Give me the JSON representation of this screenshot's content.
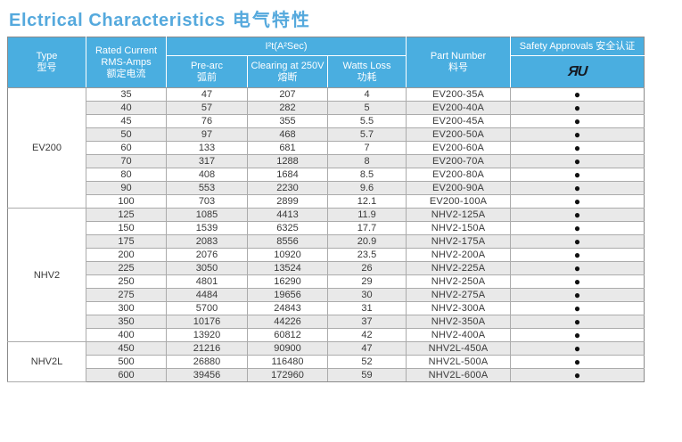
{
  "title": {
    "en": "Elctrical Characteristics",
    "zh": "电气特性"
  },
  "colors": {
    "title_blue": "#55a9dd",
    "header_blue": "#4aaee0",
    "alt_row_gray": "#e9e9e9",
    "grid_gray": "#ababab",
    "approval_dark": "#121212"
  },
  "table": {
    "header": {
      "type": {
        "en": "Type",
        "zh": "型号"
      },
      "rated_current": {
        "line1": "Rated Current",
        "line2": "RMS-Amps",
        "zh": "额定电流"
      },
      "i2t": "I²t(A²Sec)",
      "pre_arc": {
        "en": "Pre-arc",
        "zh": "弧前"
      },
      "clearing": {
        "en": "Clearing at 250V",
        "zh": "熔断"
      },
      "watts_loss": {
        "en": "Watts Loss",
        "zh": "功耗"
      },
      "part_number": {
        "en": "Part Number",
        "zh": "料号"
      },
      "safety_approvals": "Safety Approvals 安全认证",
      "ul_mark_glyph": "ЯU"
    },
    "approval_dot": "●",
    "groups": [
      {
        "type": "EV200",
        "rows": [
          {
            "rated": "35",
            "pre_arc": "47",
            "clearing": "207",
            "watts": "4",
            "part": "EV200-35A"
          },
          {
            "rated": "40",
            "pre_arc": "57",
            "clearing": "282",
            "watts": "5",
            "part": "EV200-40A"
          },
          {
            "rated": "45",
            "pre_arc": "76",
            "clearing": "355",
            "watts": "5.5",
            "part": "EV200-45A"
          },
          {
            "rated": "50",
            "pre_arc": "97",
            "clearing": "468",
            "watts": "5.7",
            "part": "EV200-50A"
          },
          {
            "rated": "60",
            "pre_arc": "133",
            "clearing": "681",
            "watts": "7",
            "part": "EV200-60A"
          },
          {
            "rated": "70",
            "pre_arc": "317",
            "clearing": "1288",
            "watts": "8",
            "part": "EV200-70A"
          },
          {
            "rated": "80",
            "pre_arc": "408",
            "clearing": "1684",
            "watts": "8.5",
            "part": "EV200-80A"
          },
          {
            "rated": "90",
            "pre_arc": "553",
            "clearing": "2230",
            "watts": "9.6",
            "part": "EV200-90A"
          },
          {
            "rated": "100",
            "pre_arc": "703",
            "clearing": "2899",
            "watts": "12.1",
            "part": "EV200-100A"
          }
        ]
      },
      {
        "type": "NHV2",
        "rows": [
          {
            "rated": "125",
            "pre_arc": "1085",
            "clearing": "4413",
            "watts": "11.9",
            "part": "NHV2-125A"
          },
          {
            "rated": "150",
            "pre_arc": "1539",
            "clearing": "6325",
            "watts": "17.7",
            "part": "NHV2-150A"
          },
          {
            "rated": "175",
            "pre_arc": "2083",
            "clearing": "8556",
            "watts": "20.9",
            "part": "NHV2-175A"
          },
          {
            "rated": "200",
            "pre_arc": "2076",
            "clearing": "10920",
            "watts": "23.5",
            "part": "NHV2-200A"
          },
          {
            "rated": "225",
            "pre_arc": "3050",
            "clearing": "13524",
            "watts": "26",
            "part": "NHV2-225A"
          },
          {
            "rated": "250",
            "pre_arc": "4801",
            "clearing": "16290",
            "watts": "29",
            "part": "NHV2-250A"
          },
          {
            "rated": "275",
            "pre_arc": "4484",
            "clearing": "19656",
            "watts": "30",
            "part": "NHV2-275A"
          },
          {
            "rated": "300",
            "pre_arc": "5700",
            "clearing": "24843",
            "watts": "31",
            "part": "NHV2-300A"
          },
          {
            "rated": "350",
            "pre_arc": "10176",
            "clearing": "44226",
            "watts": "37",
            "part": "NHV2-350A"
          },
          {
            "rated": "400",
            "pre_arc": "13920",
            "clearing": "60812",
            "watts": "42",
            "part": "NHV2-400A"
          }
        ]
      },
      {
        "type": "NHV2L",
        "rows": [
          {
            "rated": "450",
            "pre_arc": "21216",
            "clearing": "90900",
            "watts": "47",
            "part": "NHV2L-450A"
          },
          {
            "rated": "500",
            "pre_arc": "26880",
            "clearing": "116480",
            "watts": "52",
            "part": "NHV2L-500A"
          },
          {
            "rated": "600",
            "pre_arc": "39456",
            "clearing": "172960",
            "watts": "59",
            "part": "NHV2L-600A"
          }
        ]
      }
    ]
  }
}
